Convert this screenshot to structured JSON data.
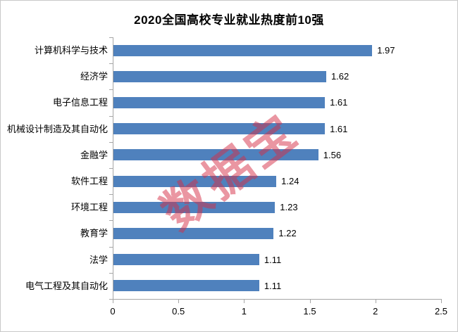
{
  "title": "2020全国高校专业就业热度前10强",
  "watermark_text": "数据宝",
  "colors": {
    "bar": "#4f81bd",
    "axis": "#a6a6a6",
    "watermark": "rgba(214, 45, 70, 0.5)",
    "frame_border": "#c9c9c9",
    "text": "#000000"
  },
  "chart_data": {
    "type": "bar",
    "orientation": "horizontal",
    "title": "2020全国高校专业就业热度前10强",
    "categories": [
      "计算机科学与技术",
      "经济学",
      "电子信息工程",
      "机械设计制造及其自动化",
      "金融学",
      "软件工程",
      "环境工程",
      "教育学",
      "法学",
      "电气工程及其自动化"
    ],
    "values": [
      1.97,
      1.62,
      1.61,
      1.61,
      1.56,
      1.24,
      1.23,
      1.22,
      1.11,
      1.11
    ],
    "value_labels": [
      "1.97",
      "1.62",
      "1.61",
      "1.61",
      "1.56",
      "1.24",
      "1.23",
      "1.22",
      "1.11",
      "1.11"
    ],
    "xlabel": "",
    "ylabel": "",
    "xlim": [
      0,
      2.5
    ],
    "x_ticks": [
      {
        "value": 0,
        "label": "0"
      },
      {
        "value": 0.5,
        "label": "0.5"
      },
      {
        "value": 1,
        "label": "1"
      },
      {
        "value": 1.5,
        "label": "1.5"
      },
      {
        "value": 2,
        "label": "2"
      },
      {
        "value": 2.5,
        "label": "2.5"
      }
    ],
    "grid": false,
    "data_labels": true,
    "legend": false,
    "annotations": [
      "数据宝"
    ]
  }
}
